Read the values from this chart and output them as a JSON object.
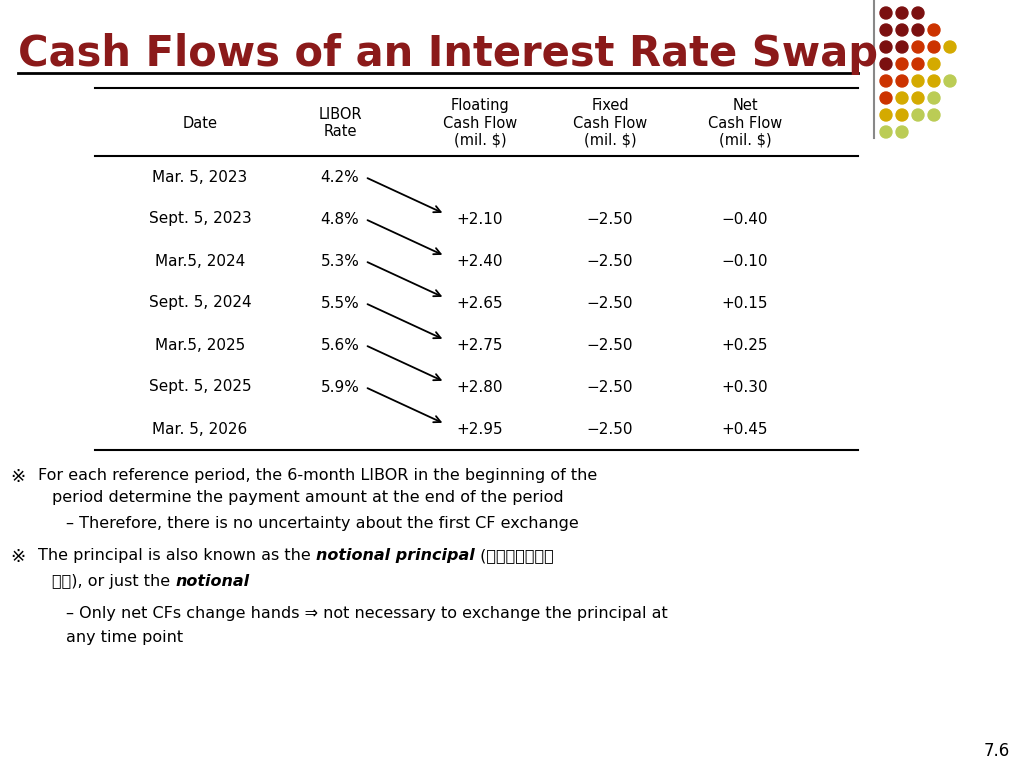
{
  "title": "Cash Flows of an Interest Rate Swap",
  "title_color": "#8B1A1A",
  "bg_color": "#FFFFFF",
  "slide_number": "7.6",
  "table": {
    "col_headers": [
      "Date",
      "LIBOR\nRate",
      "Floating\nCash Flow\n(mil. $)",
      "Fixed\nCash Flow\n(mil. $)",
      "Net\nCash Flow\n(mil. $)"
    ],
    "rows": [
      [
        "Mar. 5, 2023",
        "4.2%",
        "",
        "",
        ""
      ],
      [
        "Sept. 5, 2023",
        "4.8%",
        "+2.10",
        "−2.50",
        "−0.40"
      ],
      [
        "Mar.5, 2024",
        "5.3%",
        "+2.40",
        "−2.50",
        "−0.10"
      ],
      [
        "Sept. 5, 2024",
        "5.5%",
        "+2.65",
        "−2.50",
        "+0.15"
      ],
      [
        "Mar.5, 2025",
        "5.6%",
        "+2.75",
        "−2.50",
        "+0.25"
      ],
      [
        "Sept. 5, 2025",
        "5.9%",
        "+2.80",
        "−2.50",
        "+0.30"
      ],
      [
        "Mar. 5, 2026",
        "",
        "+2.95",
        "−2.50",
        "+0.45"
      ]
    ]
  },
  "dots": {
    "colors_grid": [
      [
        "#7B1010",
        "#7B1010",
        "#7B1010"
      ],
      [
        "#7B1010",
        "#7B1010",
        "#7B1010",
        "#CC3300"
      ],
      [
        "#7B1010",
        "#7B1010",
        "#CC3300",
        "#CC3300",
        "#D4AA00"
      ],
      [
        "#7B1010",
        "#CC3300",
        "#CC3300",
        "#D4AA00"
      ],
      [
        "#CC3300",
        "#CC3300",
        "#D4AA00",
        "#D4AA00",
        "#BBCC55"
      ],
      [
        "#CC3300",
        "#D4AA00",
        "#D4AA00",
        "#BBCC55"
      ],
      [
        "#D4AA00",
        "#D4AA00",
        "#BBCC55",
        "#BBCC55"
      ],
      [
        "#BBCC55",
        "#BBCC55"
      ]
    ]
  }
}
